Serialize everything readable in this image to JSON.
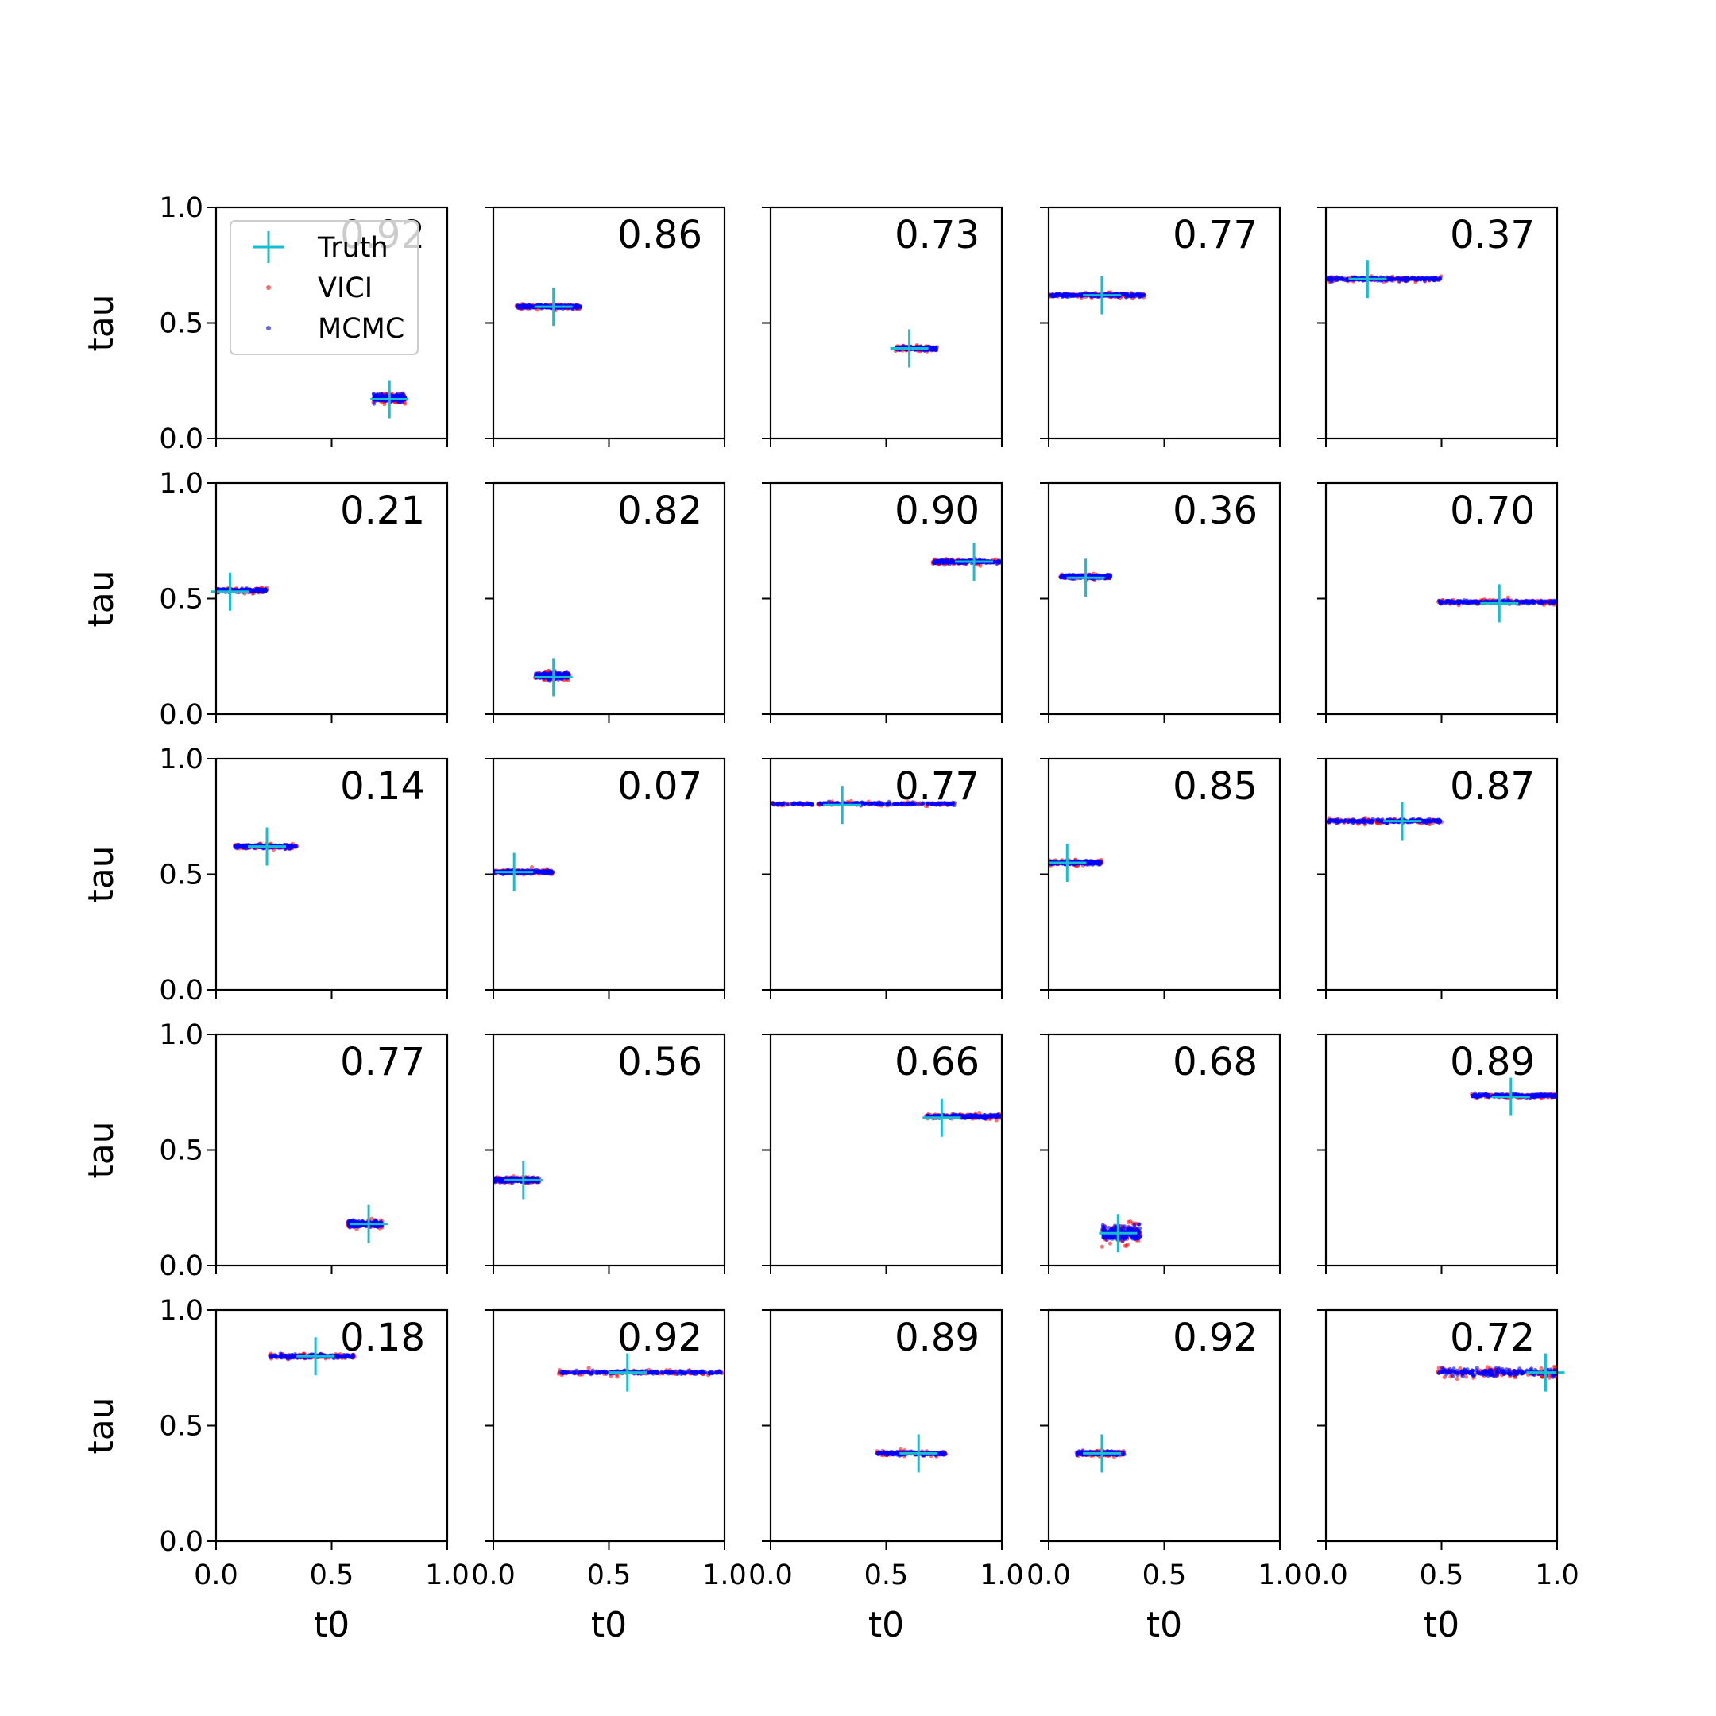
{
  "chart_data": {
    "type": "scatter",
    "layout": {
      "rows": 5,
      "cols": 5
    },
    "xlabel": "t0",
    "ylabel": "tau",
    "xlim": [
      0,
      1
    ],
    "ylim": [
      0,
      1
    ],
    "xticks": [
      "0.0",
      "0.5",
      "1.0"
    ],
    "yticks": [
      "0.0",
      "0.5",
      "1.0"
    ],
    "legend": {
      "placement": "upper-left of first panel",
      "entries": [
        {
          "label": "Truth",
          "marker": "plus",
          "color": "#17becf"
        },
        {
          "label": "VICI",
          "marker": "dot",
          "color": "#ff0000"
        },
        {
          "label": "MCMC",
          "marker": "dot",
          "color": "#0000ff"
        }
      ]
    },
    "colors": {
      "truth": "#17becf",
      "vici": "#ff0000",
      "mcmc": "#0000ff"
    },
    "panels": [
      {
        "score": "0.92",
        "truth": [
          0.75,
          0.17
        ],
        "t0_range": [
          0.68,
          0.82
        ],
        "tau": 0.175,
        "tau_spread": 0.012
      },
      {
        "score": "0.86",
        "truth": [
          0.26,
          0.57
        ],
        "t0_range": [
          0.1,
          0.38
        ],
        "tau": 0.57,
        "tau_spread": 0.006
      },
      {
        "score": "0.73",
        "truth": [
          0.6,
          0.39
        ],
        "t0_range": [
          0.54,
          0.72
        ],
        "tau": 0.39,
        "tau_spread": 0.006
      },
      {
        "score": "0.77",
        "truth": [
          0.23,
          0.62
        ],
        "t0_range": [
          0.0,
          0.42
        ],
        "tau": 0.62,
        "tau_spread": 0.006
      },
      {
        "score": "0.37",
        "truth": [
          0.18,
          0.69
        ],
        "t0_range": [
          0.0,
          0.5
        ],
        "tau": 0.69,
        "tau_spread": 0.006
      },
      {
        "score": "0.21",
        "truth": [
          0.06,
          0.53
        ],
        "t0_range": [
          0.0,
          0.22
        ],
        "tau": 0.535,
        "tau_spread": 0.006
      },
      {
        "score": "0.82",
        "truth": [
          0.26,
          0.16
        ],
        "t0_range": [
          0.18,
          0.33
        ],
        "tau": 0.165,
        "tau_spread": 0.012
      },
      {
        "score": "0.90",
        "truth": [
          0.88,
          0.66
        ],
        "t0_range": [
          0.7,
          1.0
        ],
        "tau": 0.66,
        "tau_spread": 0.006
      },
      {
        "score": "0.36",
        "truth": [
          0.16,
          0.59
        ],
        "t0_range": [
          0.05,
          0.27
        ],
        "tau": 0.595,
        "tau_spread": 0.006
      },
      {
        "score": "0.70",
        "truth": [
          0.75,
          0.48
        ],
        "t0_range": [
          0.48,
          1.0
        ],
        "tau": 0.485,
        "tau_spread": 0.006
      },
      {
        "score": "0.14",
        "truth": [
          0.22,
          0.62
        ],
        "t0_range": [
          0.08,
          0.35
        ],
        "tau": 0.62,
        "tau_spread": 0.006
      },
      {
        "score": "0.07",
        "truth": [
          0.09,
          0.51
        ],
        "t0_range": [
          0.0,
          0.26
        ],
        "tau": 0.51,
        "tau_spread": 0.006
      },
      {
        "score": "0.77",
        "truth": [
          0.31,
          0.8
        ],
        "t0_range": [
          0.0,
          0.81
        ],
        "tau": 0.805,
        "tau_spread": 0.005
      },
      {
        "score": "0.85",
        "truth": [
          0.08,
          0.55
        ],
        "t0_range": [
          0.0,
          0.23
        ],
        "tau": 0.55,
        "tau_spread": 0.006
      },
      {
        "score": "0.87",
        "truth": [
          0.33,
          0.73
        ],
        "t0_range": [
          0.0,
          0.5
        ],
        "tau": 0.73,
        "tau_spread": 0.006
      },
      {
        "score": "0.77",
        "truth": [
          0.66,
          0.18
        ],
        "t0_range": [
          0.57,
          0.72
        ],
        "tau": 0.18,
        "tau_spread": 0.01
      },
      {
        "score": "0.56",
        "truth": [
          0.13,
          0.37
        ],
        "t0_range": [
          0.0,
          0.2
        ],
        "tau": 0.37,
        "tau_spread": 0.008
      },
      {
        "score": "0.66",
        "truth": [
          0.74,
          0.64
        ],
        "t0_range": [
          0.67,
          1.0
        ],
        "tau": 0.645,
        "tau_spread": 0.006
      },
      {
        "score": "0.68",
        "truth": [
          0.3,
          0.14
        ],
        "t0_range": [
          0.23,
          0.4
        ],
        "tau": 0.14,
        "tau_spread": 0.025
      },
      {
        "score": "0.89",
        "truth": [
          0.8,
          0.73
        ],
        "t0_range": [
          0.63,
          1.0
        ],
        "tau": 0.735,
        "tau_spread": 0.006
      },
      {
        "score": "0.18",
        "truth": [
          0.43,
          0.8
        ],
        "t0_range": [
          0.23,
          0.6
        ],
        "tau": 0.8,
        "tau_spread": 0.006
      },
      {
        "score": "0.92",
        "truth": [
          0.58,
          0.73
        ],
        "t0_range": [
          0.28,
          1.0
        ],
        "tau": 0.73,
        "tau_spread": 0.006
      },
      {
        "score": "0.89",
        "truth": [
          0.64,
          0.38
        ],
        "t0_range": [
          0.46,
          0.76
        ],
        "tau": 0.38,
        "tau_spread": 0.006
      },
      {
        "score": "0.92",
        "truth": [
          0.23,
          0.38
        ],
        "t0_range": [
          0.12,
          0.33
        ],
        "tau": 0.38,
        "tau_spread": 0.006
      },
      {
        "score": "0.72",
        "truth": [
          0.95,
          0.73
        ],
        "t0_range": [
          0.48,
          1.0
        ],
        "tau": 0.73,
        "tau_spread": 0.012
      }
    ]
  }
}
